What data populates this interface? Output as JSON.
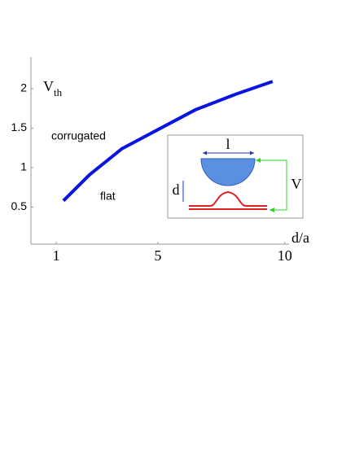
{
  "chart_data": {
    "type": "line",
    "y_label": {
      "text": "V",
      "subscript": "th"
    },
    "x_label": "d/a",
    "annotations": [
      "corrugated",
      "flat"
    ],
    "x": [
      1.28,
      2.31,
      3.59,
      5.0,
      6.47,
      8.08,
      9.52
    ],
    "series": [
      {
        "color": "#0a14e0",
        "values": [
          0.58,
          0.91,
          1.24,
          1.48,
          1.73,
          1.93,
          2.09
        ]
      }
    ],
    "xlim": [
      0,
      10.2
    ],
    "xticks": [
      1,
      5,
      10
    ],
    "ylim": [
      0,
      2.4
    ],
    "yticks": [
      0.5,
      1,
      1.5,
      2
    ],
    "inset_labels": [
      "l",
      "d",
      "V"
    ]
  }
}
